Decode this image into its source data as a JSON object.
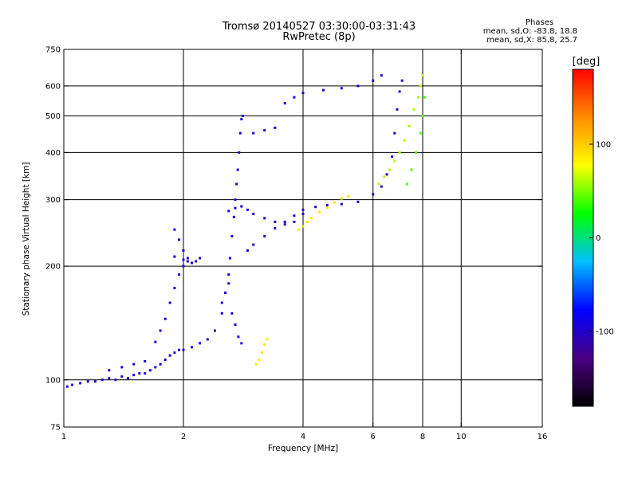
{
  "chart_data": {
    "type": "scatter",
    "title": "Tromsø 20140527 03:30:00-03:31:43",
    "subtitle": "RwPretec (8p)",
    "stats": {
      "title": "Phases",
      "line1": "mean, sd,O: -83.8, 18.8",
      "line2": "mean, sd,X:  85.8, 25.7"
    },
    "xlabel": "Frequency [MHz]",
    "ylabel": "Stationary phase Virtual Height [km]",
    "x_scale": "log",
    "y_scale": "log",
    "xlim": [
      1,
      16
    ],
    "ylim": [
      75,
      750
    ],
    "x_ticks": [
      1,
      2,
      4,
      6,
      8,
      10,
      16
    ],
    "y_ticks": [
      75,
      100,
      200,
      300,
      400,
      500,
      600,
      750
    ],
    "x_gridlines": [
      2,
      4,
      6,
      8,
      10
    ],
    "y_gridlines": [
      100,
      200,
      300,
      400,
      500,
      600
    ],
    "grid": true,
    "colorbar": {
      "title": "[deg]",
      "range": [
        -180,
        180
      ],
      "ticks": [
        100,
        0,
        -100
      ],
      "colormap": [
        "#000000",
        "#4b0082",
        "#0000ff",
        "#00bfff",
        "#00ff00",
        "#ffff00",
        "#ff8c00",
        "#ff0000"
      ]
    },
    "series": [
      {
        "phase": -95,
        "points": [
          [
            1.02,
            96
          ],
          [
            1.05,
            97
          ],
          [
            1.1,
            98
          ],
          [
            1.15,
            99
          ],
          [
            1.2,
            99
          ],
          [
            1.25,
            100
          ],
          [
            1.3,
            101
          ],
          [
            1.35,
            100
          ],
          [
            1.4,
            102
          ],
          [
            1.45,
            101
          ],
          [
            1.5,
            103
          ],
          [
            1.55,
            104
          ],
          [
            1.6,
            104
          ],
          [
            1.65,
            106
          ],
          [
            1.7,
            108
          ],
          [
            1.75,
            110
          ],
          [
            1.8,
            113
          ],
          [
            1.85,
            116
          ],
          [
            1.9,
            118
          ],
          [
            1.95,
            120
          ]
        ]
      },
      {
        "phase": -90,
        "points": [
          [
            1.3,
            106
          ],
          [
            1.4,
            108
          ],
          [
            1.5,
            110
          ],
          [
            1.6,
            112
          ],
          [
            1.7,
            126
          ],
          [
            1.75,
            135
          ],
          [
            1.8,
            145
          ],
          [
            1.85,
            160
          ],
          [
            1.9,
            175
          ],
          [
            1.95,
            190
          ],
          [
            2.0,
            200
          ],
          [
            2.05,
            210
          ],
          [
            2.0,
            220
          ],
          [
            1.95,
            235
          ],
          [
            1.9,
            250
          ]
        ]
      },
      {
        "phase": -100,
        "points": [
          [
            1.9,
            212
          ],
          [
            2.0,
            208
          ],
          [
            2.05,
            206
          ],
          [
            2.1,
            204
          ],
          [
            2.15,
            206
          ],
          [
            2.2,
            210
          ]
        ]
      },
      {
        "phase": -92,
        "points": [
          [
            2.0,
            120
          ],
          [
            2.1,
            122
          ],
          [
            2.2,
            125
          ],
          [
            2.3,
            128
          ],
          [
            2.4,
            135
          ],
          [
            2.5,
            150
          ],
          [
            2.55,
            170
          ],
          [
            2.6,
            190
          ],
          [
            2.62,
            210
          ],
          [
            2.65,
            240
          ],
          [
            2.68,
            270
          ],
          [
            2.7,
            300
          ],
          [
            2.72,
            330
          ],
          [
            2.74,
            360
          ],
          [
            2.76,
            400
          ],
          [
            2.78,
            450
          ],
          [
            2.8,
            490
          ],
          [
            2.82,
            500
          ]
        ]
      },
      {
        "phase": -98,
        "points": [
          [
            2.5,
            160
          ],
          [
            2.55,
            170
          ],
          [
            2.6,
            180
          ],
          [
            2.65,
            150
          ],
          [
            2.7,
            140
          ],
          [
            2.75,
            130
          ],
          [
            2.8,
            125
          ]
        ]
      },
      {
        "phase": -96,
        "points": [
          [
            2.6,
            280
          ],
          [
            2.7,
            285
          ],
          [
            2.8,
            288
          ],
          [
            2.9,
            282
          ],
          [
            3.0,
            275
          ],
          [
            3.2,
            268
          ],
          [
            3.4,
            262
          ],
          [
            3.6,
            258
          ],
          [
            3.8,
            262
          ],
          [
            4.0,
            275
          ]
        ]
      },
      {
        "phase": -105,
        "points": [
          [
            2.9,
            220
          ],
          [
            3.0,
            228
          ],
          [
            3.2,
            240
          ],
          [
            3.4,
            252
          ],
          [
            3.6,
            262
          ],
          [
            3.8,
            272
          ],
          [
            4.0,
            282
          ],
          [
            4.3,
            287
          ],
          [
            4.6,
            290
          ],
          [
            5.0,
            292
          ],
          [
            5.5,
            296
          ],
          [
            6.0,
            310
          ],
          [
            6.3,
            325
          ],
          [
            6.5,
            350
          ],
          [
            6.7,
            390
          ],
          [
            6.8,
            450
          ],
          [
            6.9,
            520
          ],
          [
            7.0,
            580
          ],
          [
            7.1,
            620
          ]
        ]
      },
      {
        "phase": 90,
        "points": [
          [
            3.9,
            250
          ],
          [
            4.0,
            255
          ],
          [
            4.1,
            262
          ],
          [
            4.2,
            268
          ],
          [
            4.4,
            278
          ],
          [
            4.6,
            286
          ],
          [
            4.8,
            295
          ],
          [
            5.0,
            302
          ],
          [
            5.2,
            306
          ]
        ]
      },
      {
        "phase": 88,
        "points": [
          [
            3.05,
            110
          ],
          [
            3.1,
            113
          ],
          [
            3.15,
            118
          ],
          [
            3.2,
            124
          ],
          [
            3.25,
            128
          ]
        ]
      },
      {
        "phase": -88,
        "points": [
          [
            3.0,
            450
          ],
          [
            3.2,
            458
          ],
          [
            3.4,
            465
          ],
          [
            3.6,
            540
          ],
          [
            3.8,
            560
          ],
          [
            4.0,
            575
          ],
          [
            4.5,
            585
          ],
          [
            5.0,
            592
          ],
          [
            5.5,
            600
          ],
          [
            6.0,
            620
          ],
          [
            6.3,
            640
          ]
        ]
      },
      {
        "phase": 60,
        "points": [
          [
            6.2,
            330
          ],
          [
            6.4,
            345
          ],
          [
            6.6,
            360
          ],
          [
            6.8,
            380
          ],
          [
            7.0,
            400
          ],
          [
            7.2,
            430
          ],
          [
            7.4,
            470
          ],
          [
            7.6,
            520
          ],
          [
            7.8,
            560
          ],
          [
            7.9,
            600
          ],
          [
            8.0,
            640
          ]
        ]
      },
      {
        "phase": 40,
        "points": [
          [
            7.3,
            330
          ],
          [
            7.5,
            360
          ],
          [
            7.7,
            400
          ],
          [
            7.9,
            450
          ],
          [
            8.0,
            500
          ],
          [
            8.1,
            560
          ]
        ]
      }
    ]
  }
}
